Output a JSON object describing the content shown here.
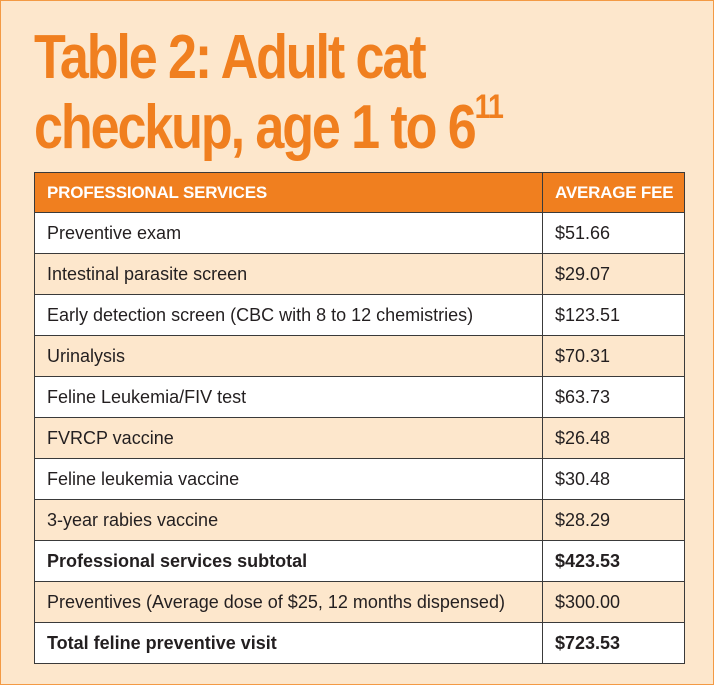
{
  "title": {
    "line1": "Table 2: Adult cat",
    "line2": "checkup, age 1 to 6",
    "footnote": "11"
  },
  "table": {
    "headers": {
      "service": "PROFESSIONAL SERVICES",
      "fee": "AVERAGE FEE"
    },
    "rows": [
      {
        "service": "Preventive exam",
        "fee": "$51.66",
        "bold": false
      },
      {
        "service": "Intestinal parasite screen",
        "fee": "$29.07",
        "bold": false
      },
      {
        "service": "Early detection screen (CBC with 8 to 12 chemistries)",
        "fee": "$123.51",
        "bold": false
      },
      {
        "service": "Urinalysis",
        "fee": "$70.31",
        "bold": false
      },
      {
        "service": "Feline Leukemia/FIV test",
        "fee": "$63.73",
        "bold": false
      },
      {
        "service": "FVRCP vaccine",
        "fee": "$26.48",
        "bold": false
      },
      {
        "service": "Feline leukemia vaccine",
        "fee": "$30.48",
        "bold": false
      },
      {
        "service": "3-year rabies vaccine",
        "fee": "$28.29",
        "bold": false
      },
      {
        "service": "Professional services subtotal",
        "fee": "$423.53",
        "bold": true
      },
      {
        "service": "Preventives (Average dose of $25, 12 months dispensed)",
        "fee": "$300.00",
        "bold": false
      },
      {
        "service": "Total feline preventive visit",
        "fee": "$723.53",
        "bold": true
      }
    ]
  },
  "colors": {
    "accent": "#f07f1f",
    "panel_background": "#fde7cc",
    "row_alt": "#fde7cc",
    "row_base": "#ffffff"
  }
}
